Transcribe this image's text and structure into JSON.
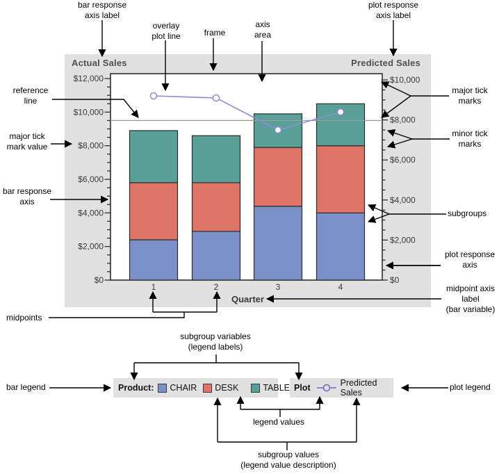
{
  "chart_data": {
    "type": "bar",
    "subtype": "vertical-stacked-bars-with-line-overlay",
    "categories": [
      "1",
      "2",
      "3",
      "4"
    ],
    "series": [
      {
        "name": "CHAIR",
        "type": "bar",
        "axis": "left",
        "color": "#7b90c8",
        "values": [
          2400,
          2900,
          4400,
          4000
        ]
      },
      {
        "name": "DESK",
        "type": "bar",
        "axis": "left",
        "color": "#dd7467",
        "values": [
          3400,
          2900,
          3500,
          4000
        ]
      },
      {
        "name": "TABLE",
        "type": "bar",
        "axis": "left",
        "color": "#58a098",
        "values": [
          3100,
          2800,
          2000,
          2500
        ]
      },
      {
        "name": "Predicted Sales",
        "type": "line",
        "axis": "right",
        "color": "#8c8cd4",
        "marker": "open-circle",
        "values": [
          9200,
          9100,
          7500,
          8400
        ]
      }
    ],
    "left_axis": {
      "title": "Actual Sales",
      "range": [
        0,
        12000
      ],
      "major_tick_interval": 2000,
      "minor_tick_interval": 500,
      "tick_labels": [
        "$0",
        "$2,000",
        "$4,000",
        "$6,000",
        "$8,000",
        "$10,000",
        "$12,000"
      ]
    },
    "right_axis": {
      "title": "Predicted Sales",
      "range": [
        0,
        10000
      ],
      "major_tick_interval": 2000,
      "minor_tick_interval": 500,
      "tick_labels": [
        "$0",
        "$2,000",
        "$4,000",
        "$6,000",
        "$8,000",
        "$10,000"
      ]
    },
    "x_axis": {
      "title": "Quarter",
      "midpoints": [
        "1",
        "2",
        "3",
        "4"
      ]
    },
    "reference_line": {
      "axis": "left",
      "value": 9500,
      "color": "#9b9b9b"
    },
    "grid": false,
    "legend_position": "bottom"
  },
  "legends": {
    "bar": {
      "label": "Product:",
      "entries": [
        {
          "name": "CHAIR",
          "color": "#7b90c8"
        },
        {
          "name": "DESK",
          "color": "#dd7467"
        },
        {
          "name": "TABLE",
          "color": "#58a098"
        }
      ]
    },
    "plot": {
      "label": "Plot",
      "entries": [
        {
          "name": "Predicted Sales",
          "color": "#6b6bc0",
          "symbol": "line-with-open-circle"
        }
      ]
    }
  },
  "annotations": {
    "bar_response_axis_label": "bar response\naxis label",
    "overlay_plot_line": "overlay\nplot line",
    "frame": "frame",
    "axis_area": "axis\narea",
    "plot_response_axis_label": "plot response\naxis label",
    "reference_line": "reference\nline",
    "major_tick_mark_value": "major tick\nmark value",
    "bar_response_axis": "bar response\naxis",
    "midpoints": "midpoints",
    "major_tick_marks": "major tick\nmarks",
    "minor_tick_marks": "minor tick\nmarks",
    "subgroups": "subgroups",
    "plot_response_axis": "plot response\naxis",
    "midpoint_axis_label": "midpoint axis\nlabel\n(bar variable)",
    "plot_legend": "plot legend",
    "bar_legend": "bar legend",
    "subgroup_variables": "subgroup variables\n(legend labels)",
    "legend_values": "legend values",
    "subgroup_values": "subgroup values\n(legend value description)"
  },
  "colors": {
    "chart_background": "#e1e1e1",
    "plot_frame_background": "#ffffff",
    "frame_border": "#2d2d2d",
    "axis_text": "#383838",
    "title_text": "#4f4f4f",
    "annotation_text": "#000000",
    "annotation_lines": "#000000"
  }
}
